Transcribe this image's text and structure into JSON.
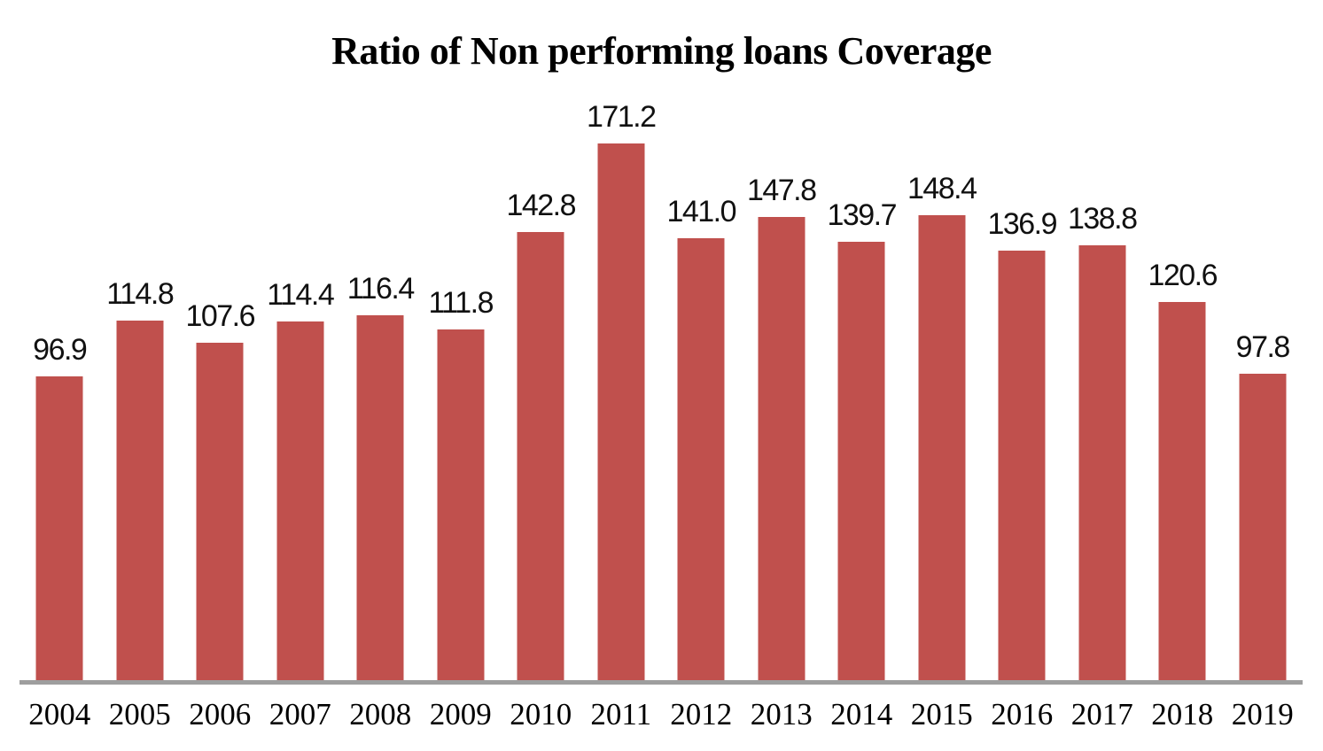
{
  "chart_data": {
    "type": "bar",
    "title": "Ratio of Non performing loans Coverage",
    "categories": [
      "2004",
      "2005",
      "2006",
      "2007",
      "2008",
      "2009",
      "2010",
      "2011",
      "2012",
      "2013",
      "2014",
      "2015",
      "2016",
      "2017",
      "2018",
      "2019"
    ],
    "values": [
      96.9,
      114.8,
      107.6,
      114.4,
      116.4,
      111.8,
      142.8,
      171.2,
      141.0,
      147.8,
      139.7,
      148.4,
      136.9,
      138.8,
      120.6,
      97.8
    ],
    "value_labels": [
      "96.9",
      "114.8",
      "107.6",
      "114.4",
      "116.4",
      "111.8",
      "142.8",
      "171.2",
      "141.0",
      "147.8",
      "139.7",
      "148.4",
      "136.9",
      "138.8",
      "120.6",
      "97.8"
    ],
    "xlabel": "",
    "ylabel": "",
    "legend_position": "none",
    "grid": false,
    "data_labels_shown": true,
    "y_axis_shown": false,
    "bar_color": "#C0504D",
    "axis_line_color": "#9E9E9E",
    "label_text_color": "#111111",
    "title_text_color": "#000000"
  }
}
